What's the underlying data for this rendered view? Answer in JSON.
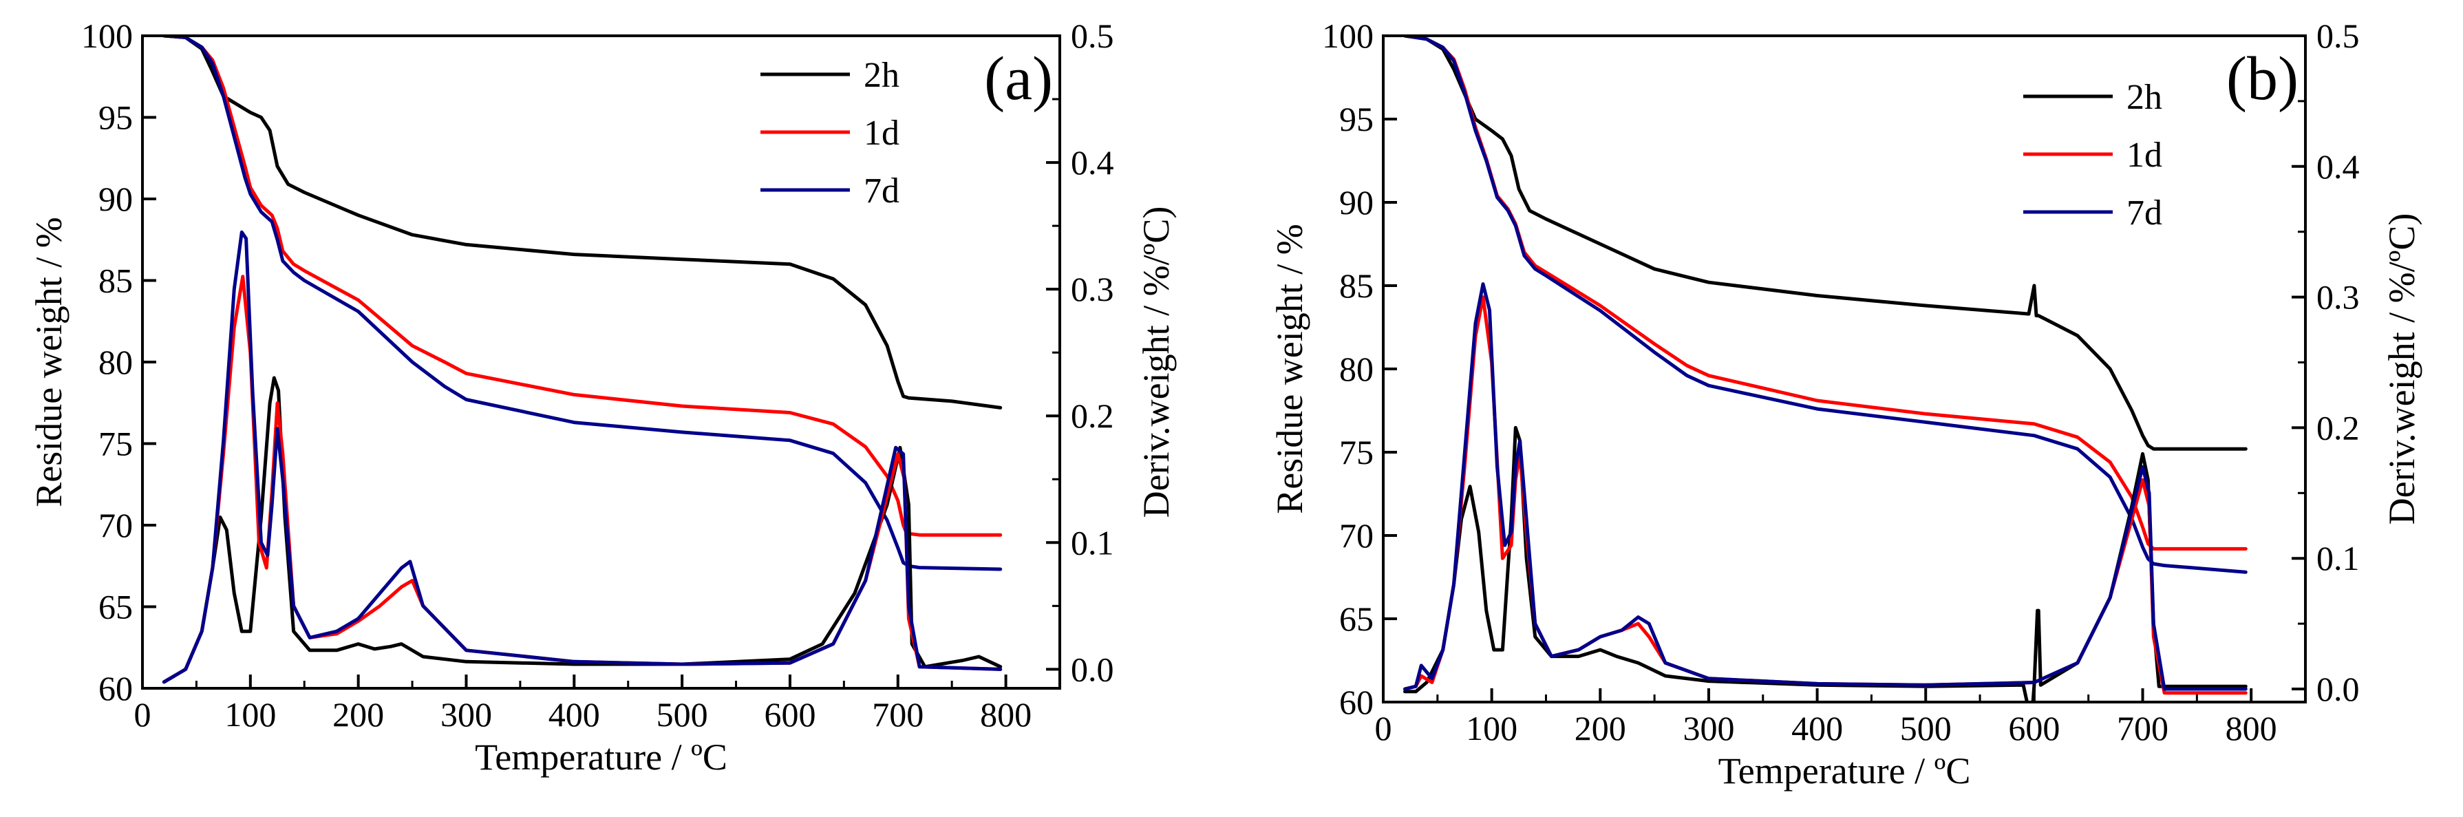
{
  "chart_data": [
    {
      "type": "line",
      "panel_label": "(a)",
      "xlabel": "Temperature / ºC",
      "ylabel_left": "Residue weight / %",
      "ylabel_right": "Deriv.weight / %/ºC)",
      "xlim": [
        0,
        850
      ],
      "ylim_left": [
        60,
        100
      ],
      "ylim_right": [
        -0.015,
        0.5
      ],
      "xticks": [
        0,
        100,
        200,
        300,
        400,
        500,
        600,
        700,
        800
      ],
      "yticks_left": [
        60,
        65,
        70,
        75,
        80,
        85,
        90,
        95,
        100
      ],
      "yticks_right": [
        0.0,
        0.1,
        0.2,
        0.3,
        0.4,
        0.5
      ],
      "ytick_labels_right": [
        "0.0",
        "0.1",
        "0.2",
        "0.3",
        "0.4",
        "0.5"
      ],
      "legend": {
        "placement": "top-right",
        "entries": [
          "2h",
          "1d",
          "7d"
        ]
      },
      "series": [
        {
          "name": "2h",
          "axis": "left",
          "color": "#000000",
          "x": [
            20,
            40,
            55,
            65,
            75,
            85,
            100,
            110,
            118,
            125,
            135,
            150,
            200,
            250,
            300,
            400,
            500,
            600,
            640,
            670,
            690,
            700,
            705,
            710,
            750,
            795
          ],
          "y": [
            100,
            99.9,
            99.2,
            97.8,
            96.3,
            95.9,
            95.3,
            95,
            94.2,
            92,
            90.9,
            90.4,
            89,
            87.8,
            87.2,
            86.6,
            86.3,
            86,
            85.1,
            83.5,
            81,
            78.8,
            77.9,
            77.8,
            77.6,
            77.2
          ]
        },
        {
          "name": "1d",
          "axis": "left",
          "color": "#ff0000",
          "x": [
            20,
            40,
            55,
            65,
            75,
            85,
            95,
            100,
            110,
            120,
            125,
            130,
            140,
            150,
            200,
            250,
            280,
            300,
            400,
            500,
            600,
            640,
            670,
            690,
            700,
            705,
            708,
            720,
            795
          ],
          "y": [
            100,
            99.9,
            99.3,
            98.5,
            96.8,
            94.4,
            92,
            90.7,
            89.6,
            89,
            88.2,
            86.8,
            86,
            85.6,
            83.8,
            81,
            80,
            79.3,
            78,
            77.3,
            76.9,
            76.2,
            74.8,
            73,
            71.5,
            70,
            69.5,
            69.4,
            69.4
          ]
        },
        {
          "name": "7d",
          "axis": "left",
          "color": "#00008b",
          "x": [
            20,
            40,
            55,
            65,
            75,
            85,
            95,
            100,
            110,
            120,
            125,
            130,
            140,
            150,
            200,
            250,
            280,
            300,
            400,
            500,
            600,
            640,
            670,
            690,
            700,
            705,
            710,
            720,
            795
          ],
          "y": [
            100,
            99.9,
            99.3,
            98.3,
            96.3,
            93.8,
            91.3,
            90.3,
            89.2,
            88.6,
            87.5,
            86.2,
            85.5,
            85,
            83.1,
            80,
            78.5,
            77.7,
            76.3,
            75.7,
            75.2,
            74.4,
            72.6,
            70.3,
            68.6,
            67.7,
            67.5,
            67.4,
            67.3
          ]
        },
        {
          "name": "2h",
          "axis": "right",
          "color": "#000000",
          "x": [
            20,
            40,
            55,
            65,
            72,
            78,
            85,
            92,
            100,
            110,
            118,
            122,
            126,
            132,
            140,
            155,
            180,
            200,
            215,
            230,
            240,
            260,
            300,
            400,
            500,
            600,
            630,
            660,
            690,
            702,
            710,
            713,
            725,
            760,
            775,
            795
          ],
          "y": [
            -0.01,
            0,
            0.03,
            0.08,
            0.12,
            0.11,
            0.06,
            0.03,
            0.03,
            0.12,
            0.21,
            0.23,
            0.22,
            0.12,
            0.03,
            0.015,
            0.015,
            0.02,
            0.016,
            0.018,
            0.02,
            0.01,
            0.006,
            0.004,
            0.004,
            0.008,
            0.02,
            0.06,
            0.13,
            0.175,
            0.13,
            0.02,
            0.002,
            0.007,
            0.01,
            0.002
          ]
        },
        {
          "name": "1d",
          "axis": "right",
          "color": "#ff0000",
          "x": [
            20,
            40,
            55,
            65,
            75,
            85,
            93,
            100,
            108,
            115,
            120,
            125,
            130,
            140,
            155,
            180,
            200,
            220,
            240,
            250,
            260,
            300,
            400,
            500,
            600,
            640,
            670,
            700,
            706,
            710,
            720,
            795
          ],
          "y": [
            -0.01,
            0,
            0.03,
            0.08,
            0.17,
            0.27,
            0.31,
            0.25,
            0.1,
            0.08,
            0.14,
            0.21,
            0.17,
            0.05,
            0.025,
            0.028,
            0.038,
            0.05,
            0.065,
            0.07,
            0.05,
            0.015,
            0.006,
            0.004,
            0.005,
            0.02,
            0.07,
            0.17,
            0.15,
            0.04,
            0.002,
            0
          ]
        },
        {
          "name": "7d",
          "axis": "right",
          "color": "#00008b",
          "x": [
            20,
            40,
            55,
            65,
            75,
            85,
            92,
            96,
            102,
            110,
            116,
            120,
            125,
            130,
            140,
            155,
            180,
            200,
            220,
            240,
            248,
            260,
            300,
            400,
            500,
            600,
            640,
            670,
            698,
            705,
            710,
            720,
            795
          ],
          "y": [
            -0.01,
            0,
            0.03,
            0.08,
            0.18,
            0.3,
            0.345,
            0.34,
            0.22,
            0.1,
            0.09,
            0.13,
            0.19,
            0.15,
            0.05,
            0.025,
            0.03,
            0.04,
            0.06,
            0.08,
            0.085,
            0.05,
            0.015,
            0.006,
            0.004,
            0.005,
            0.02,
            0.07,
            0.175,
            0.17,
            0.05,
            0.002,
            0
          ]
        }
      ]
    },
    {
      "type": "line",
      "panel_label": "(b)",
      "xlabel": "Temperature / ºC",
      "ylabel_left": "Residue weight / %",
      "ylabel_right": "Deriv.weight / %/ºC)",
      "xlim": [
        0,
        850
      ],
      "ylim_left": [
        60,
        100
      ],
      "ylim_right": [
        -0.01,
        0.5
      ],
      "xticks": [
        0,
        100,
        200,
        300,
        400,
        500,
        600,
        700,
        800
      ],
      "yticks_left": [
        60,
        65,
        70,
        75,
        80,
        85,
        90,
        95,
        100
      ],
      "yticks_right": [
        0.0,
        0.1,
        0.2,
        0.3,
        0.4,
        0.5
      ],
      "ytick_labels_right": [
        "0.0",
        "0.1",
        "0.2",
        "0.3",
        "0.4",
        "0.5"
      ],
      "legend": {
        "placement": "top-right",
        "entries": [
          "2h",
          "1d",
          "7d"
        ]
      },
      "series": [
        {
          "name": "2h",
          "axis": "left",
          "color": "#000000",
          "x": [
            20,
            40,
            55,
            65,
            75,
            85,
            100,
            110,
            118,
            125,
            135,
            150,
            200,
            250,
            300,
            400,
            500,
            595,
            600,
            602,
            604,
            610,
            640,
            670,
            690,
            700,
            705,
            710,
            795
          ],
          "y": [
            100,
            99.8,
            99.2,
            98,
            96.5,
            95,
            94.3,
            93.8,
            92.8,
            90.8,
            89.5,
            89,
            87.5,
            86,
            85.2,
            84.4,
            83.8,
            83.3,
            85,
            83.2,
            83.2,
            83,
            82,
            80,
            77.5,
            76,
            75.4,
            75.2,
            75.2
          ]
        },
        {
          "name": "1d",
          "axis": "left",
          "color": "#ff0000",
          "x": [
            20,
            40,
            55,
            65,
            75,
            85,
            95,
            105,
            115,
            122,
            130,
            140,
            150,
            200,
            250,
            280,
            300,
            400,
            500,
            600,
            640,
            670,
            690,
            700,
            705,
            710,
            720,
            795
          ],
          "y": [
            100,
            99.8,
            99.3,
            98.6,
            96.8,
            94.5,
            92.6,
            90.4,
            89.6,
            88.7,
            87,
            86.2,
            85.8,
            83.8,
            81.5,
            80.2,
            79.6,
            78.1,
            77.3,
            76.7,
            75.9,
            74.4,
            72.3,
            70.5,
            69.5,
            69.2,
            69.2,
            69.2
          ]
        },
        {
          "name": "7d",
          "axis": "left",
          "color": "#00008b",
          "x": [
            20,
            40,
            55,
            65,
            75,
            85,
            95,
            105,
            115,
            122,
            130,
            140,
            150,
            200,
            250,
            280,
            300,
            400,
            500,
            600,
            640,
            670,
            690,
            700,
            705,
            710,
            720,
            795
          ],
          "y": [
            100,
            99.8,
            99.3,
            98.5,
            96.6,
            94.3,
            92.5,
            90.3,
            89.5,
            88.6,
            86.8,
            86,
            85.6,
            83.5,
            81,
            79.6,
            79,
            77.6,
            76.8,
            76,
            75.2,
            73.5,
            71,
            69.3,
            68.6,
            68.3,
            68.2,
            67.8
          ]
        },
        {
          "name": "2h",
          "axis": "right",
          "color": "#000000",
          "x": [
            20,
            30,
            40,
            55,
            65,
            72,
            80,
            88,
            95,
            102,
            110,
            118,
            122,
            126,
            132,
            140,
            155,
            180,
            200,
            215,
            235,
            240,
            260,
            300,
            400,
            500,
            590,
            596,
            598,
            600,
            603,
            604,
            606,
            610,
            640,
            670,
            690,
            700,
            705,
            710,
            715,
            795
          ],
          "y": [
            -0.002,
            -0.002,
            0.005,
            0.03,
            0.08,
            0.13,
            0.155,
            0.12,
            0.06,
            0.03,
            0.03,
            0.13,
            0.2,
            0.19,
            0.1,
            0.04,
            0.025,
            0.025,
            0.03,
            0.025,
            0.02,
            0.018,
            0.01,
            0.006,
            0.003,
            0.002,
            0.003,
            -0.02,
            -0.02,
            0.003,
            0.06,
            0.06,
            0.003,
            0.005,
            0.02,
            0.07,
            0.14,
            0.18,
            0.16,
            0.05,
            0.002,
            0.002
          ]
        },
        {
          "name": "1d",
          "axis": "right",
          "color": "#ff0000",
          "x": [
            20,
            30,
            35,
            45,
            55,
            65,
            75,
            85,
            92,
            100,
            110,
            118,
            122,
            126,
            132,
            140,
            155,
            180,
            200,
            220,
            235,
            245,
            260,
            300,
            400,
            500,
            600,
            640,
            670,
            700,
            706,
            710,
            720,
            795
          ],
          "y": [
            0,
            0.002,
            0.01,
            0.005,
            0.03,
            0.08,
            0.17,
            0.27,
            0.3,
            0.25,
            0.1,
            0.11,
            0.16,
            0.18,
            0.12,
            0.05,
            0.025,
            0.03,
            0.04,
            0.045,
            0.05,
            0.04,
            0.02,
            0.008,
            0.004,
            0.003,
            0.005,
            0.02,
            0.07,
            0.16,
            0.14,
            0.04,
            -0.003,
            -0.003
          ]
        },
        {
          "name": "7d",
          "axis": "right",
          "color": "#00008b",
          "x": [
            20,
            30,
            35,
            45,
            55,
            65,
            75,
            85,
            92,
            98,
            105,
            112,
            118,
            122,
            126,
            132,
            140,
            155,
            180,
            200,
            220,
            235,
            245,
            260,
            300,
            400,
            500,
            600,
            640,
            670,
            700,
            706,
            710,
            720,
            795
          ],
          "y": [
            0,
            0.002,
            0.018,
            0.008,
            0.03,
            0.08,
            0.18,
            0.28,
            0.31,
            0.29,
            0.17,
            0.11,
            0.12,
            0.17,
            0.19,
            0.13,
            0.05,
            0.025,
            0.03,
            0.04,
            0.045,
            0.055,
            0.05,
            0.02,
            0.008,
            0.004,
            0.003,
            0.005,
            0.02,
            0.07,
            0.17,
            0.15,
            0.05,
            0.0,
            0.0
          ]
        }
      ]
    }
  ]
}
